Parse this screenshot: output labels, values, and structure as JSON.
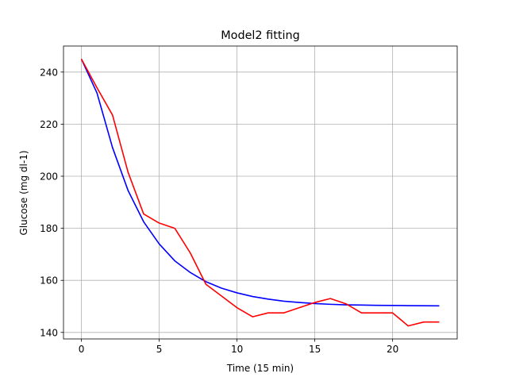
{
  "chart_data": {
    "type": "line",
    "title": "Model2 fitting",
    "xlabel": "Time (15 min)",
    "ylabel": "Glucose (mg dl-1)",
    "xlim": [
      -1.15,
      24.15
    ],
    "ylim": [
      137.5,
      250
    ],
    "xticks": [
      0,
      5,
      10,
      15,
      20
    ],
    "yticks": [
      140,
      160,
      180,
      200,
      220,
      240
    ],
    "grid": true,
    "series": [
      {
        "color": "#0000ff",
        "x": [
          0,
          1,
          2,
          3,
          4,
          5,
          6,
          7,
          8,
          9,
          10,
          11,
          12,
          13,
          14,
          15,
          16,
          17,
          18,
          19,
          20,
          21,
          22,
          23
        ],
        "y": [
          245,
          232,
          211,
          194.5,
          182.5,
          174,
          167.5,
          163,
          159.5,
          157,
          155.2,
          153.8,
          152.8,
          152,
          151.5,
          151.1,
          150.8,
          150.6,
          150.5,
          150.4,
          150.35,
          150.3,
          150.25,
          150.2
        ]
      },
      {
        "color": "#ff0000",
        "x": [
          0,
          1,
          2,
          3,
          4,
          5,
          6,
          7,
          8,
          9,
          10,
          11,
          12,
          13,
          14,
          15,
          16,
          17,
          18,
          19,
          20,
          21,
          22,
          23
        ],
        "y": [
          245,
          234,
          223.5,
          201.5,
          185.5,
          182,
          180,
          170.5,
          158.5,
          154,
          149.5,
          146,
          147.5,
          147.5,
          149.5,
          151.5,
          153,
          151,
          147.5,
          147.5,
          147.5,
          142.5,
          144,
          144
        ]
      }
    ]
  }
}
